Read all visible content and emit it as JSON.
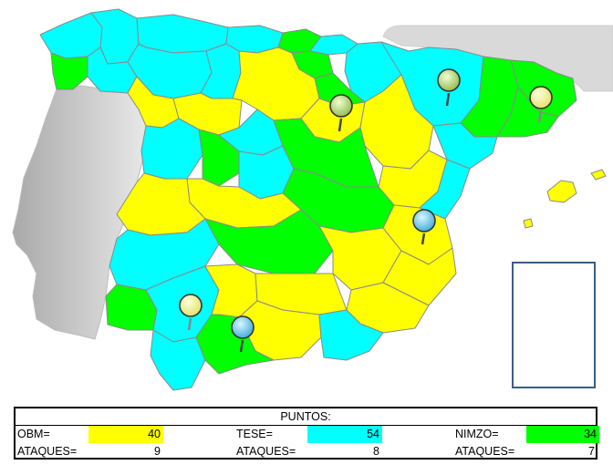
{
  "colors": {
    "obm": "#ffff00",
    "tese": "#00ffff",
    "nimzo": "#00ff00",
    "portugal": "#c8c8c8",
    "sea_border": "#8a8a8a",
    "inset_border": "#3b5d85"
  },
  "map": {
    "pins": [
      {
        "name": "pin-green-north",
        "color": "light-green"
      },
      {
        "name": "pin-green-center",
        "color": "light-green"
      },
      {
        "name": "pin-yellow-catalonia",
        "color": "yellow"
      },
      {
        "name": "pin-blue-valencia",
        "color": "cyan"
      },
      {
        "name": "pin-yellow-andalusia",
        "color": "yellow"
      },
      {
        "name": "pin-blue-granada",
        "color": "cyan"
      }
    ]
  },
  "table": {
    "title": "PUNTOS:",
    "rows": [
      {
        "label_a": "OBM=",
        "value_a": "40",
        "label_b": "TESE=",
        "value_b": "54",
        "label_c": "NIMZO=",
        "value_c": "34"
      },
      {
        "label_a": "ATAQUES=",
        "value_a": "9",
        "label_b": "ATAQUES=",
        "value_b": "8",
        "label_c": "ATAQUES=",
        "value_c": "7"
      }
    ]
  }
}
